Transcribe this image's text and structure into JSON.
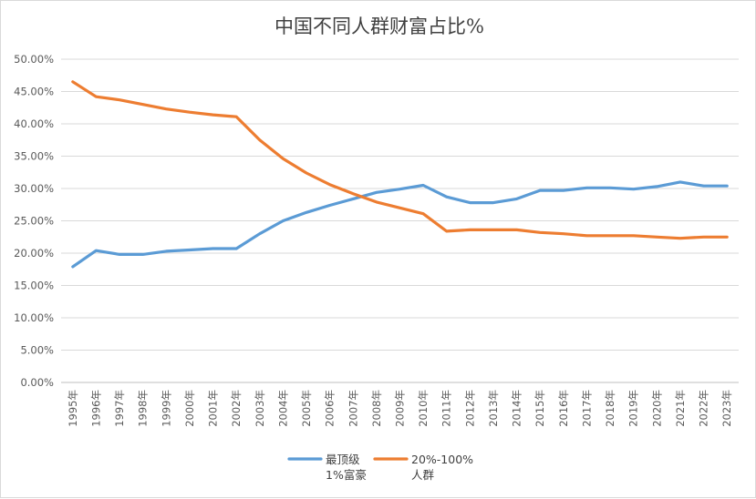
{
  "chart_data": {
    "type": "line",
    "title": "中国不同人群财富占比%",
    "categories": [
      "1995年",
      "1996年",
      "1997年",
      "1998年",
      "1999年",
      "2000年",
      "2001年",
      "2002年",
      "2003年",
      "2004年",
      "2005年",
      "2006年",
      "2007年",
      "2008年",
      "2009年",
      "2010年",
      "2011年",
      "2012年",
      "2013年",
      "2014年",
      "2015年",
      "2016年",
      "2017年",
      "2018年",
      "2019年",
      "2020年",
      "2021年",
      "2022年",
      "2023年"
    ],
    "ylim": [
      0,
      0.5
    ],
    "yticks": [
      "0.00%",
      "5.00%",
      "10.00%",
      "15.00%",
      "20.00%",
      "25.00%",
      "30.00%",
      "35.00%",
      "40.00%",
      "45.00%",
      "50.00%"
    ],
    "grid": true,
    "legend": "bottom",
    "series": [
      {
        "name_lines": [
          "最顶级",
          "1%富豪"
        ],
        "color": "#5b9bd5",
        "values": [
          0.179,
          0.204,
          0.198,
          0.198,
          0.203,
          0.205,
          0.207,
          0.207,
          0.23,
          0.25,
          0.263,
          0.274,
          0.284,
          0.294,
          0.299,
          0.305,
          0.287,
          0.278,
          0.278,
          0.284,
          0.297,
          0.297,
          0.301,
          0.301,
          0.299,
          0.303,
          0.31,
          0.304,
          0.304
        ]
      },
      {
        "name_lines": [
          "20%-100%",
          "人群"
        ],
        "color": "#ed7d31",
        "values": [
          0.465,
          0.442,
          0.437,
          0.43,
          0.423,
          0.418,
          0.414,
          0.411,
          0.375,
          0.346,
          0.324,
          0.306,
          0.292,
          0.279,
          0.27,
          0.261,
          0.234,
          0.236,
          0.236,
          0.236,
          0.232,
          0.23,
          0.227,
          0.227,
          0.227,
          0.225,
          0.223,
          0.225,
          0.225
        ]
      }
    ]
  }
}
